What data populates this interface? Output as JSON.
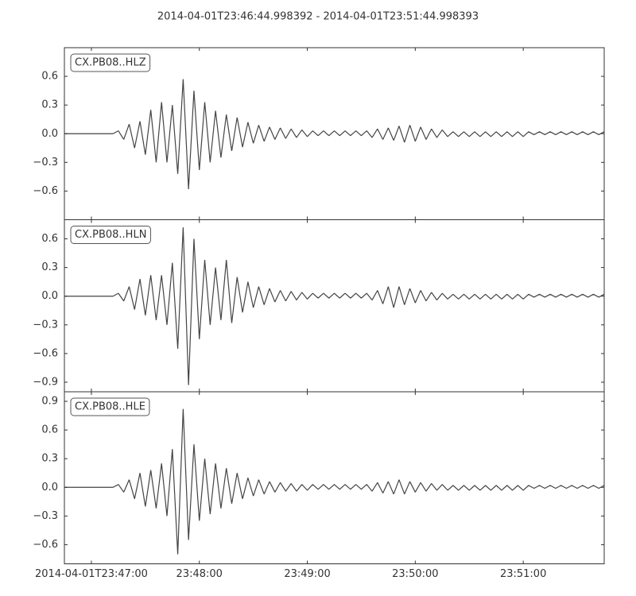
{
  "title": "2014-04-01T23:46:44.998392  -  2014-04-01T23:51:44.998393",
  "chart_data": [
    {
      "type": "line",
      "legend": "upper left",
      "grid": false,
      "xlim": [
        0,
        300
      ],
      "ylim": [
        -0.9,
        0.9
      ],
      "yticks": [
        {
          "value": -0.6,
          "label": "−0.6"
        },
        {
          "value": -0.3,
          "label": "−0.3"
        },
        {
          "value": 0,
          "label": "0.0"
        },
        0.3,
        0.6
      ],
      "x": [
        0,
        3,
        6,
        9,
        12,
        15,
        18,
        21,
        24,
        27,
        30,
        33,
        36,
        39,
        42,
        45,
        48,
        51,
        54,
        57,
        60,
        63,
        66,
        69,
        72,
        75,
        78,
        81,
        84,
        87,
        90,
        93,
        96,
        99,
        102,
        105,
        108,
        111,
        114,
        117,
        120,
        123,
        126,
        129,
        132,
        135,
        138,
        141,
        144,
        147,
        150,
        153,
        156,
        159,
        162,
        165,
        168,
        171,
        174,
        177,
        180,
        183,
        186,
        189,
        192,
        195,
        198,
        201,
        204,
        207,
        210,
        213,
        216,
        219,
        222,
        225,
        228,
        231,
        234,
        237,
        240,
        243,
        246,
        249,
        252,
        255,
        258,
        261,
        264,
        267,
        270,
        273,
        276,
        279,
        282,
        285,
        288,
        291,
        294,
        297,
        300
      ],
      "series": [
        {
          "name": "CX.PB08..HLZ",
          "color": "#444444",
          "values": [
            0,
            0,
            0,
            0,
            0,
            0,
            0,
            0,
            0,
            0,
            0.03,
            -0.06,
            0.1,
            -0.15,
            0.13,
            -0.22,
            0.25,
            -0.3,
            0.33,
            -0.3,
            0.3,
            -0.42,
            0.57,
            -0.58,
            0.45,
            -0.38,
            0.33,
            -0.3,
            0.24,
            -0.25,
            0.2,
            -0.18,
            0.17,
            -0.14,
            0.12,
            -0.1,
            0.09,
            -0.08,
            0.07,
            -0.06,
            0.06,
            -0.05,
            0.05,
            -0.04,
            0.04,
            -0.03,
            0.03,
            -0.02,
            0.03,
            -0.02,
            0.03,
            -0.02,
            0.03,
            -0.02,
            0.03,
            -0.02,
            0.03,
            -0.04,
            0.05,
            -0.06,
            0.06,
            -0.07,
            0.08,
            -0.09,
            0.09,
            -0.08,
            0.07,
            -0.06,
            0.05,
            -0.04,
            0.04,
            -0.03,
            0.02,
            -0.03,
            0.02,
            -0.03,
            0.02,
            -0.03,
            0.02,
            -0.03,
            0.02,
            -0.03,
            0.02,
            -0.03,
            0.02,
            -0.03,
            0.02,
            -0.01,
            0.02,
            -0.01,
            0.02,
            -0.01,
            0.02,
            -0.01,
            0.02,
            -0.01,
            0.02,
            -0.01,
            0.02,
            -0.01,
            0.02
          ]
        }
      ]
    },
    {
      "type": "line",
      "legend": "upper left",
      "grid": false,
      "xlim": [
        0,
        300
      ],
      "ylim": [
        -1.0,
        0.8
      ],
      "yticks": [
        {
          "value": -0.9,
          "label": "−0.9"
        },
        {
          "value": -0.6,
          "label": "−0.6"
        },
        {
          "value": -0.3,
          "label": "−0.3"
        },
        {
          "value": 0,
          "label": "0.0"
        },
        0.3,
        0.6
      ],
      "x": [
        0,
        3,
        6,
        9,
        12,
        15,
        18,
        21,
        24,
        27,
        30,
        33,
        36,
        39,
        42,
        45,
        48,
        51,
        54,
        57,
        60,
        63,
        66,
        69,
        72,
        75,
        78,
        81,
        84,
        87,
        90,
        93,
        96,
        99,
        102,
        105,
        108,
        111,
        114,
        117,
        120,
        123,
        126,
        129,
        132,
        135,
        138,
        141,
        144,
        147,
        150,
        153,
        156,
        159,
        162,
        165,
        168,
        171,
        174,
        177,
        180,
        183,
        186,
        189,
        192,
        195,
        198,
        201,
        204,
        207,
        210,
        213,
        216,
        219,
        222,
        225,
        228,
        231,
        234,
        237,
        240,
        243,
        246,
        249,
        252,
        255,
        258,
        261,
        264,
        267,
        270,
        273,
        276,
        279,
        282,
        285,
        288,
        291,
        294,
        297,
        300
      ],
      "series": [
        {
          "name": "CX.PB08..HLN",
          "color": "#444444",
          "values": [
            0,
            0,
            0,
            0,
            0,
            0,
            0,
            0,
            0,
            0,
            0.03,
            -0.05,
            0.1,
            -0.14,
            0.18,
            -0.2,
            0.22,
            -0.25,
            0.22,
            -0.3,
            0.35,
            -0.55,
            0.72,
            -0.93,
            0.6,
            -0.45,
            0.38,
            -0.3,
            0.3,
            -0.25,
            0.38,
            -0.28,
            0.2,
            -0.17,
            0.15,
            -0.12,
            0.1,
            -0.09,
            0.08,
            -0.06,
            0.06,
            -0.05,
            0.05,
            -0.04,
            0.04,
            -0.03,
            0.03,
            -0.02,
            0.03,
            -0.02,
            0.03,
            -0.02,
            0.03,
            -0.02,
            0.03,
            -0.02,
            0.03,
            -0.04,
            0.06,
            -0.08,
            0.1,
            -0.12,
            0.1,
            -0.09,
            0.08,
            -0.07,
            0.06,
            -0.05,
            0.04,
            -0.04,
            0.03,
            -0.03,
            0.02,
            -0.03,
            0.02,
            -0.03,
            0.02,
            -0.03,
            0.02,
            -0.03,
            0.02,
            -0.03,
            0.02,
            -0.03,
            0.02,
            -0.03,
            0.02,
            -0.01,
            0.02,
            -0.01,
            0.02,
            -0.01,
            0.02,
            -0.01,
            0.02,
            -0.01,
            0.02,
            -0.01,
            0.02,
            -0.01,
            0.02
          ]
        }
      ]
    },
    {
      "type": "line",
      "legend": "upper left",
      "grid": false,
      "xlim": [
        0,
        300
      ],
      "ylim": [
        -0.8,
        1.0
      ],
      "xticks": [
        {
          "value": 15,
          "label": "2014-04-01T23:47:00"
        },
        {
          "value": 75,
          "label": "23:48:00"
        },
        {
          "value": 135,
          "label": "23:49:00"
        },
        {
          "value": 195,
          "label": "23:50:00"
        },
        {
          "value": 255,
          "label": "23:51:00"
        }
      ],
      "yticks": [
        {
          "value": -0.6,
          "label": "−0.6"
        },
        {
          "value": -0.3,
          "label": "−0.3"
        },
        {
          "value": 0,
          "label": "0.0"
        },
        0.3,
        0.6,
        0.9
      ],
      "x": [
        0,
        3,
        6,
        9,
        12,
        15,
        18,
        21,
        24,
        27,
        30,
        33,
        36,
        39,
        42,
        45,
        48,
        51,
        54,
        57,
        60,
        63,
        66,
        69,
        72,
        75,
        78,
        81,
        84,
        87,
        90,
        93,
        96,
        99,
        102,
        105,
        108,
        111,
        114,
        117,
        120,
        123,
        126,
        129,
        132,
        135,
        138,
        141,
        144,
        147,
        150,
        153,
        156,
        159,
        162,
        165,
        168,
        171,
        174,
        177,
        180,
        183,
        186,
        189,
        192,
        195,
        198,
        201,
        204,
        207,
        210,
        213,
        216,
        219,
        222,
        225,
        228,
        231,
        234,
        237,
        240,
        243,
        246,
        249,
        252,
        255,
        258,
        261,
        264,
        267,
        270,
        273,
        276,
        279,
        282,
        285,
        288,
        291,
        294,
        297,
        300
      ],
      "series": [
        {
          "name": "CX.PB08..HLE",
          "color": "#444444",
          "values": [
            0,
            0,
            0,
            0,
            0,
            0,
            0,
            0,
            0,
            0,
            0.03,
            -0.05,
            0.08,
            -0.12,
            0.15,
            -0.2,
            0.18,
            -0.22,
            0.25,
            -0.3,
            0.4,
            -0.7,
            0.82,
            -0.55,
            0.45,
            -0.35,
            0.3,
            -0.28,
            0.25,
            -0.22,
            0.2,
            -0.17,
            0.15,
            -0.12,
            0.1,
            -0.09,
            0.08,
            -0.07,
            0.06,
            -0.05,
            0.05,
            -0.04,
            0.04,
            -0.04,
            0.03,
            -0.03,
            0.03,
            -0.02,
            0.03,
            -0.02,
            0.03,
            -0.02,
            0.03,
            -0.02,
            0.03,
            -0.02,
            0.03,
            -0.04,
            0.05,
            -0.06,
            0.06,
            -0.07,
            0.08,
            -0.07,
            0.06,
            -0.05,
            0.05,
            -0.04,
            0.04,
            -0.03,
            0.03,
            -0.03,
            0.02,
            -0.03,
            0.02,
            -0.03,
            0.02,
            -0.03,
            0.02,
            -0.03,
            0.02,
            -0.03,
            0.02,
            -0.03,
            0.02,
            -0.03,
            0.02,
            -0.01,
            0.02,
            -0.01,
            0.02,
            -0.01,
            0.02,
            -0.01,
            0.02,
            -0.01,
            0.02,
            -0.01,
            0.02,
            -0.01,
            0.02
          ]
        }
      ]
    }
  ]
}
